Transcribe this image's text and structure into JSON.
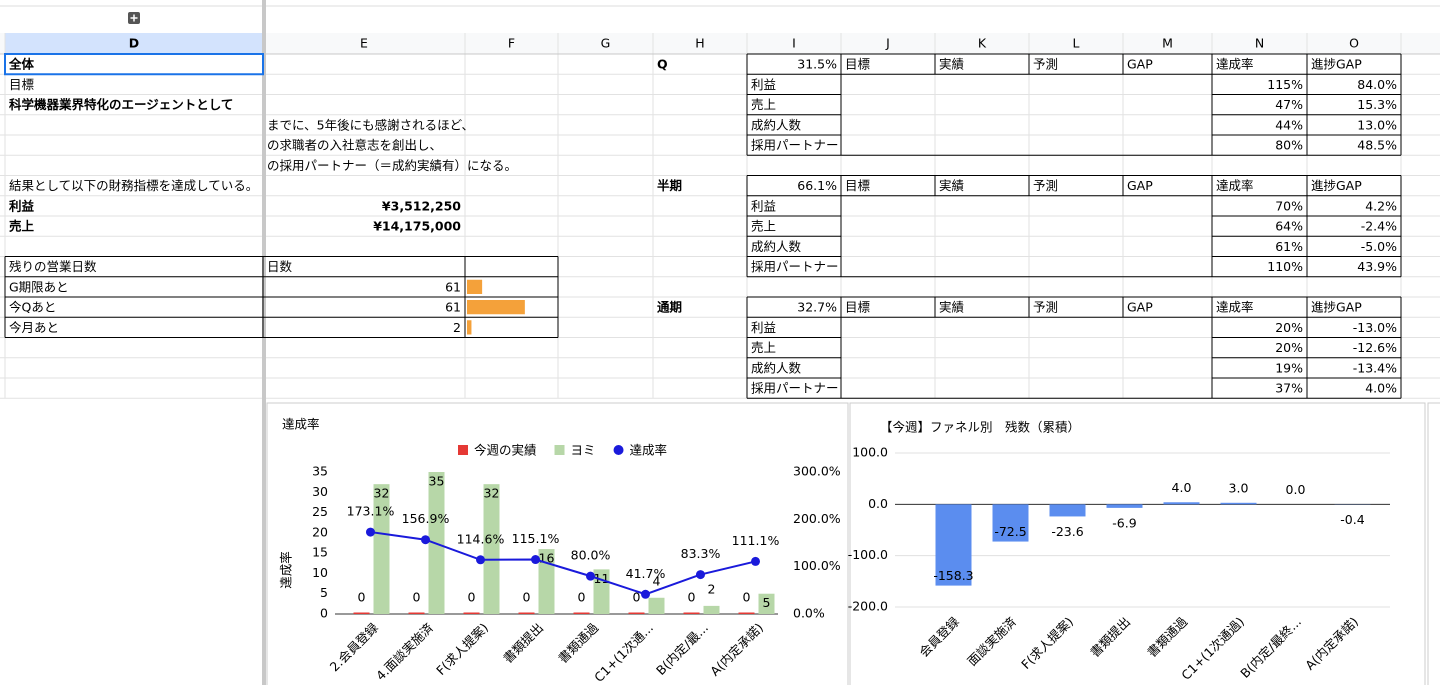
{
  "sheet": {
    "columns": [
      "D",
      "E",
      "F",
      "G",
      "H",
      "I",
      "J",
      "K",
      "L",
      "M",
      "N",
      "O"
    ],
    "overview": {
      "title": "全体",
      "goal_label": "目標",
      "vision": [
        "科学機器業界特化のエージェントとして",
        "までに、5年後にも感謝されるほど、",
        "の求職者の入社意志を創出し、",
        "の採用パートナー（＝成約実績有）になる。"
      ],
      "result": "結果として以下の財務指標を達成している。",
      "financials": [
        {
          "label": "利益",
          "value": "¥3,512,250"
        },
        {
          "label": "売上",
          "value": "¥14,175,000"
        }
      ]
    },
    "remaining_days": {
      "title": "残りの営業日数",
      "header": "日数",
      "items": [
        {
          "label": "G期限あと",
          "days": "61",
          "bar": 0.17
        },
        {
          "label": "今Qあと",
          "days": "61",
          "bar": 0.65
        },
        {
          "label": "今月あと",
          "days": "2",
          "bar": 0.05
        }
      ]
    },
    "kpi_tables": [
      {
        "period": "Q",
        "rate": "31.5%",
        "headers": [
          "目標",
          "実績",
          "予測",
          "GAP",
          "達成率",
          "進捗GAP"
        ],
        "rows": [
          {
            "label": "利益",
            "rate": "115%",
            "gap": "84.0%"
          },
          {
            "label": "売上",
            "rate": "47%",
            "gap": "15.3%"
          },
          {
            "label": "成約人数",
            "rate": "44%",
            "gap": "13.0%"
          },
          {
            "label": "採用パートナー",
            "rate": "80%",
            "gap": "48.5%"
          }
        ]
      },
      {
        "period": "半期",
        "rate": "66.1%",
        "headers": [
          "目標",
          "実績",
          "予測",
          "GAP",
          "達成率",
          "進捗GAP"
        ],
        "rows": [
          {
            "label": "利益",
            "rate": "70%",
            "gap": "4.2%"
          },
          {
            "label": "売上",
            "rate": "64%",
            "gap": "-2.4%"
          },
          {
            "label": "成約人数",
            "rate": "61%",
            "gap": "-5.0%"
          },
          {
            "label": "採用パートナー",
            "rate": "110%",
            "gap": "43.9%"
          }
        ]
      },
      {
        "period": "通期",
        "rate": "32.7%",
        "headers": [
          "目標",
          "実績",
          "予測",
          "GAP",
          "達成率",
          "進捗GAP"
        ],
        "rows": [
          {
            "label": "利益",
            "rate": "20%",
            "gap": "-13.0%"
          },
          {
            "label": "売上",
            "rate": "20%",
            "gap": "-12.6%"
          },
          {
            "label": "成約人数",
            "rate": "19%",
            "gap": "-13.4%"
          },
          {
            "label": "採用パートナー",
            "rate": "37%",
            "gap": "4.0%"
          }
        ]
      }
    ]
  },
  "chart_data": [
    {
      "type": "combo",
      "title": "達成率",
      "categories": [
        "2.会員登録",
        "4.面談実施済",
        "F(求人提案)",
        "書類提出",
        "書類通過",
        "C1+(1次通...",
        "B(内定/最...",
        "A(内定承諾)"
      ],
      "series": [
        {
          "name": "今週の実績",
          "type": "bar",
          "color": "#e53935",
          "values": [
            0,
            0,
            0,
            0,
            0,
            0,
            0,
            0
          ]
        },
        {
          "name": "ヨミ",
          "type": "bar",
          "color": "#b7d7a8",
          "values": [
            32,
            35,
            32,
            16,
            11,
            4,
            2,
            5
          ]
        },
        {
          "name": "達成率",
          "type": "line",
          "axis": "y2",
          "color": "#1a1adb",
          "values": [
            173.1,
            156.9,
            114.6,
            115.1,
            80.0,
            41.7,
            83.3,
            111.1
          ],
          "value_labels": [
            "173.1%",
            "156.9%",
            "114.6%",
            "115.1%",
            "80.0%",
            "41.7%",
            "83.3%",
            "111.1%"
          ]
        }
      ],
      "ylabel": "達成率",
      "ylim": [
        0,
        35
      ],
      "yticks": [
        0,
        5,
        10,
        15,
        20,
        25,
        30,
        35
      ],
      "y2lim": [
        0,
        300
      ],
      "y2ticks": [
        {
          "value": 0,
          "label": "0.0%"
        },
        {
          "value": 100,
          "label": "100.0%"
        },
        {
          "value": 200,
          "label": "200.0%"
        },
        {
          "value": 300,
          "label": "300.0%"
        }
      ],
      "legend": "top",
      "grid": false
    },
    {
      "type": "bar",
      "title": "【今週】ファネル別　残数（累積）",
      "categories": [
        "会員登録",
        "面談実施済",
        "F(求人提案)",
        "書類提出",
        "書類通過",
        "C1+(1次通過)",
        "B(内定/最終...",
        "A(内定承諾)"
      ],
      "values": [
        -158.3,
        -72.5,
        -23.6,
        -6.9,
        4.0,
        3.0,
        0.0,
        -0.4
      ],
      "value_labels": [
        "-158.3",
        "-72.5",
        "-23.6",
        "-6.9",
        "4.0",
        "3.0",
        "0.0",
        "-0.4"
      ],
      "color": "#5b8def",
      "ylim": [
        -200,
        100
      ],
      "yticks": [
        {
          "value": -200,
          "label": "-200.0"
        },
        {
          "value": -100,
          "label": "-100.0"
        },
        {
          "value": 0,
          "label": "0.0"
        },
        {
          "value": 100,
          "label": "100.0"
        }
      ],
      "grid": true
    }
  ]
}
